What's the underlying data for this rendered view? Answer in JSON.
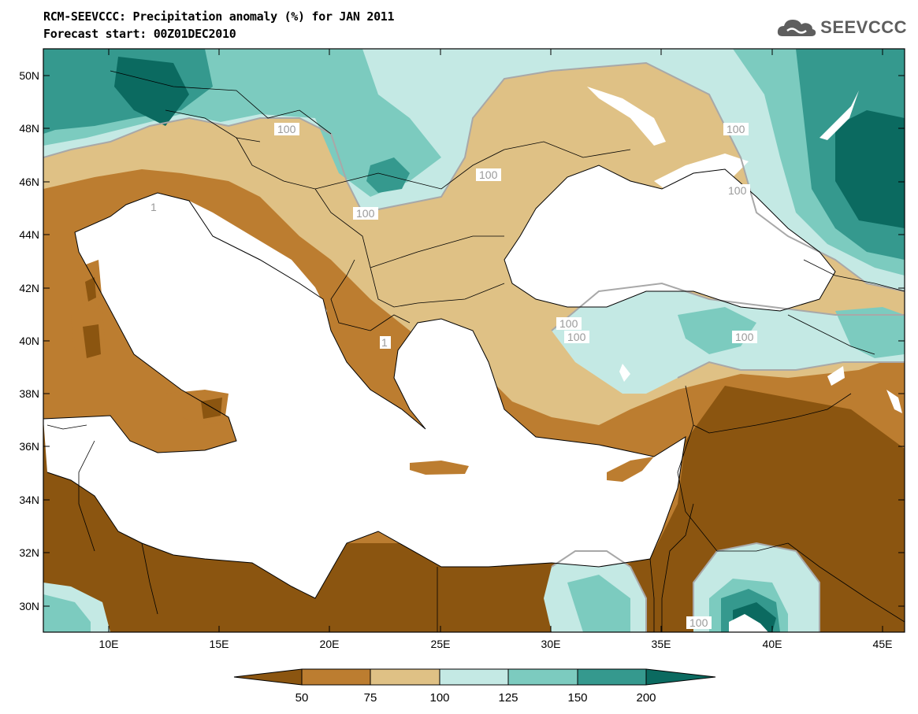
{
  "header": {
    "title": "RCM-SEEVCCC: Precipitation anomaly (%) for JAN 2011",
    "subtitle": "Forecast start: 00Z01DEC2010"
  },
  "logo": {
    "text": "SEEVCCC",
    "icon": "cloud-icon",
    "color": "#5e5e5e"
  },
  "map": {
    "lat_labels": [
      "50N",
      "48N",
      "46N",
      "44N",
      "42N",
      "40N",
      "38N",
      "36N",
      "34N",
      "32N",
      "30N"
    ],
    "lon_labels": [
      "10E",
      "15E",
      "20E",
      "25E",
      "30E",
      "35E",
      "40E",
      "45E"
    ],
    "contour_labels": [
      "100",
      "100",
      "100",
      "100",
      "100",
      "100",
      "100",
      "100",
      "100",
      "1",
      "1"
    ],
    "colors": {
      "lt50": "#8b5510",
      "50_75": "#bc7d30",
      "75_100": "#dfc185",
      "100_125": "#c4e9e4",
      "125_150": "#7ccbbf",
      "150_200": "#35998e",
      "gt200": "#0b6a60",
      "sea": "#ffffff"
    }
  },
  "colorbar": {
    "ticks": [
      "50",
      "75",
      "100",
      "125",
      "150",
      "200"
    ],
    "colors": [
      "#8b5510",
      "#bc7d30",
      "#dfc185",
      "#c4e9e4",
      "#7ccbbf",
      "#35998e",
      "#0b6a60"
    ]
  }
}
